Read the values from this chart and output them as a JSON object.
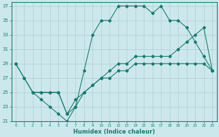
{
  "xlabel": "Humidex (Indice chaleur)",
  "bg_color": "#cde8ec",
  "line_color": "#1a7a6e",
  "grid_color": "#aacdd4",
  "xlim": [
    -0.5,
    23.5
  ],
  "ylim": [
    21,
    37.5
  ],
  "yticks": [
    21,
    23,
    25,
    27,
    29,
    31,
    33,
    35,
    37
  ],
  "xticks": [
    0,
    1,
    2,
    3,
    4,
    5,
    6,
    7,
    8,
    9,
    10,
    11,
    12,
    13,
    14,
    15,
    16,
    17,
    18,
    19,
    20,
    21,
    22,
    23
  ],
  "line1_x": [
    0,
    1,
    2,
    3,
    4,
    5,
    6,
    7,
    8,
    9,
    10,
    11,
    12,
    13,
    14,
    15,
    16,
    17,
    18,
    19,
    20,
    21,
    22,
    23
  ],
  "line1_y": [
    29,
    27,
    25,
    24,
    23,
    22,
    21,
    23,
    28,
    33,
    35,
    35,
    37,
    37,
    37,
    37,
    36,
    37,
    35,
    35,
    34,
    32,
    30,
    28
  ],
  "line2_x": [
    0,
    1,
    2,
    3,
    4,
    5,
    6,
    7,
    8,
    9,
    10,
    11,
    12,
    13,
    14,
    15,
    16,
    17,
    18,
    19,
    20,
    21,
    22,
    23
  ],
  "line2_y": [
    29,
    27,
    25,
    25,
    25,
    25,
    22,
    23,
    25,
    26,
    27,
    28,
    29,
    29,
    30,
    30,
    30,
    30,
    30,
    31,
    32,
    33,
    34,
    28
  ],
  "line3_x": [
    2,
    3,
    4,
    5,
    6,
    7,
    8,
    9,
    10,
    11,
    12,
    13,
    14,
    15,
    16,
    17,
    18,
    19,
    20,
    21,
    22,
    23
  ],
  "line3_y": [
    25,
    25,
    25,
    25,
    22,
    24,
    25,
    26,
    27,
    27,
    28,
    28,
    29,
    29,
    29,
    29,
    29,
    29,
    29,
    29,
    29,
    28
  ]
}
